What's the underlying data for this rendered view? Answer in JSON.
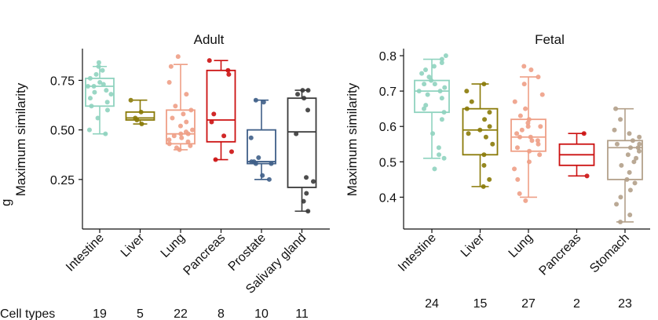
{
  "figure": {
    "cell_types_label": "Cell types",
    "panel_letter": "g"
  },
  "colors": {
    "Intestine": "#8fd3bf",
    "Liver": "#8a7a08",
    "Lung": "#ee9f86",
    "Pancreas": "#cc1111",
    "Prostate": "#3f5f88",
    "Salivary gland": "#3a3a3a",
    "Stomach": "#b3a08a"
  },
  "chart_data": [
    {
      "type": "box",
      "title": "Adult",
      "xlabel": "",
      "ylabel": "Maximum similarity",
      "ylim": [
        0.0,
        0.91
      ],
      "yticks": [
        0.25,
        0.5,
        0.75
      ],
      "ytick_labels": [
        "0.25",
        "0.50",
        "0.75"
      ],
      "categories": [
        "Intestine",
        "Liver",
        "Lung",
        "Pancreas",
        "Prostate",
        "Salivary gland"
      ],
      "counts": [
        "19",
        "5",
        "22",
        "8",
        "10",
        "11"
      ],
      "boxes": [
        {
          "name": "Intestine",
          "q1": 0.62,
          "median": 0.72,
          "q3": 0.76,
          "whisker_low": 0.48,
          "whisker_high": 0.82,
          "points": [
            0.48,
            0.5,
            0.56,
            0.6,
            0.62,
            0.64,
            0.66,
            0.68,
            0.69,
            0.7,
            0.72,
            0.72,
            0.73,
            0.74,
            0.76,
            0.78,
            0.8,
            0.82,
            0.84
          ]
        },
        {
          "name": "Liver",
          "q1": 0.55,
          "median": 0.56,
          "q3": 0.59,
          "whisker_low": 0.53,
          "whisker_high": 0.65,
          "points": [
            0.53,
            0.55,
            0.56,
            0.59,
            0.65
          ]
        },
        {
          "name": "Lung",
          "q1": 0.43,
          "median": 0.48,
          "q3": 0.6,
          "whisker_low": 0.4,
          "whisker_high": 0.83,
          "points": [
            0.4,
            0.41,
            0.42,
            0.43,
            0.44,
            0.45,
            0.46,
            0.47,
            0.48,
            0.48,
            0.49,
            0.5,
            0.52,
            0.54,
            0.56,
            0.58,
            0.6,
            0.62,
            0.68,
            0.74,
            0.82,
            0.87
          ]
        },
        {
          "name": "Pancreas",
          "q1": 0.44,
          "median": 0.55,
          "q3": 0.8,
          "whisker_low": 0.35,
          "whisker_high": 0.85,
          "points": [
            0.35,
            0.39,
            0.47,
            0.54,
            0.58,
            0.78,
            0.8,
            0.85
          ]
        },
        {
          "name": "Prostate",
          "q1": 0.33,
          "median": 0.34,
          "q3": 0.5,
          "whisker_low": 0.25,
          "whisker_high": 0.65,
          "points": [
            0.25,
            0.27,
            0.33,
            0.33,
            0.34,
            0.34,
            0.36,
            0.46,
            0.64,
            0.65
          ]
        },
        {
          "name": "Salivary gland",
          "q1": 0.21,
          "median": 0.49,
          "q3": 0.66,
          "whisker_low": 0.09,
          "whisker_high": 0.7,
          "points": [
            0.09,
            0.14,
            0.18,
            0.24,
            0.26,
            0.48,
            0.6,
            0.66,
            0.68,
            0.7,
            0.7
          ]
        }
      ]
    },
    {
      "type": "box",
      "title": "Fetal",
      "xlabel": "",
      "ylabel": "Maximum similarity",
      "ylim": [
        0.31,
        0.82
      ],
      "yticks": [
        0.4,
        0.5,
        0.6,
        0.7,
        0.8
      ],
      "ytick_labels": [
        "0.4",
        "0.5",
        "0.6",
        "0.7",
        "0.8"
      ],
      "categories": [
        "Intestine",
        "Liver",
        "Lung",
        "Pancreas",
        "Stomach"
      ],
      "counts": [
        "24",
        "15",
        "27",
        "2",
        "23"
      ],
      "boxes": [
        {
          "name": "Intestine",
          "q1": 0.64,
          "median": 0.7,
          "q3": 0.73,
          "whisker_low": 0.51,
          "whisker_high": 0.79,
          "points": [
            0.48,
            0.51,
            0.52,
            0.54,
            0.58,
            0.62,
            0.64,
            0.65,
            0.66,
            0.68,
            0.69,
            0.7,
            0.7,
            0.71,
            0.72,
            0.72,
            0.73,
            0.74,
            0.75,
            0.76,
            0.77,
            0.78,
            0.79,
            0.8
          ]
        },
        {
          "name": "Liver",
          "q1": 0.52,
          "median": 0.59,
          "q3": 0.65,
          "whisker_low": 0.43,
          "whisker_high": 0.72,
          "points": [
            0.43,
            0.45,
            0.49,
            0.52,
            0.55,
            0.57,
            0.58,
            0.59,
            0.6,
            0.62,
            0.64,
            0.65,
            0.67,
            0.7,
            0.72
          ]
        },
        {
          "name": "Lung",
          "q1": 0.53,
          "median": 0.57,
          "q3": 0.62,
          "whisker_low": 0.4,
          "whisker_high": 0.74,
          "points": [
            0.39,
            0.41,
            0.45,
            0.48,
            0.5,
            0.52,
            0.53,
            0.54,
            0.55,
            0.56,
            0.56,
            0.57,
            0.57,
            0.58,
            0.59,
            0.6,
            0.6,
            0.61,
            0.62,
            0.63,
            0.65,
            0.67,
            0.69,
            0.72,
            0.74,
            0.76,
            0.77
          ]
        },
        {
          "name": "Pancreas",
          "q1": 0.49,
          "median": 0.52,
          "q3": 0.55,
          "whisker_low": 0.46,
          "whisker_high": 0.58,
          "points": [
            0.46,
            0.58
          ]
        },
        {
          "name": "Stomach",
          "q1": 0.45,
          "median": 0.54,
          "q3": 0.56,
          "whisker_low": 0.33,
          "whisker_high": 0.65,
          "points": [
            0.33,
            0.35,
            0.38,
            0.4,
            0.42,
            0.44,
            0.45,
            0.47,
            0.49,
            0.5,
            0.51,
            0.52,
            0.53,
            0.54,
            0.54,
            0.55,
            0.55,
            0.56,
            0.57,
            0.58,
            0.59,
            0.62,
            0.65
          ]
        }
      ]
    }
  ]
}
